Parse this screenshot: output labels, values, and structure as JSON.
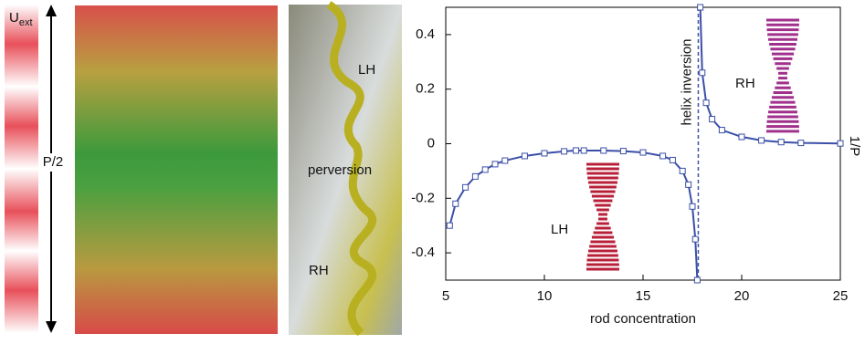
{
  "panels": {
    "field_symbol": "U",
    "field_subscript": "ext",
    "pitch_label": "P/2",
    "photo_top_label": "LH",
    "photo_middle_label": "perversion",
    "photo_bottom_label": "RH"
  },
  "chart_data": {
    "type": "line",
    "x_label": "rod concentration",
    "y_label": "1/P",
    "annotation": "helix inversion",
    "inversion_x": 17.8,
    "inset_labels": [
      "LH",
      "RH"
    ],
    "xlim": [
      5,
      25
    ],
    "xticks": [
      5,
      10,
      15,
      20,
      25
    ],
    "ylim": [
      -0.5,
      0.5
    ],
    "yticks": [
      -0.4,
      -0.2,
      0,
      0.2,
      0.4
    ],
    "x": [
      5.2,
      5.5,
      6,
      6.5,
      7,
      7.5,
      8,
      9,
      10,
      11,
      11.6,
      12,
      13,
      14,
      15,
      16,
      16.5,
      17,
      17.3,
      17.5,
      17.65,
      17.75,
      17.8,
      17.9,
      18.0,
      18.2,
      18.5,
      19,
      20,
      21,
      22,
      23,
      25
    ],
    "series": [
      {
        "name": "1/P",
        "color": "#3b4fa8",
        "values": [
          -0.3,
          -0.22,
          -0.16,
          -0.12,
          -0.095,
          -0.075,
          -0.062,
          -0.045,
          -0.035,
          -0.028,
          -0.025,
          -0.025,
          -0.025,
          -0.027,
          -0.032,
          -0.045,
          -0.06,
          -0.1,
          -0.15,
          -0.23,
          -0.35,
          -0.5,
          null,
          0.5,
          0.26,
          0.15,
          0.09,
          0.05,
          0.025,
          0.012,
          0.006,
          0.003,
          0.001
        ]
      }
    ]
  }
}
